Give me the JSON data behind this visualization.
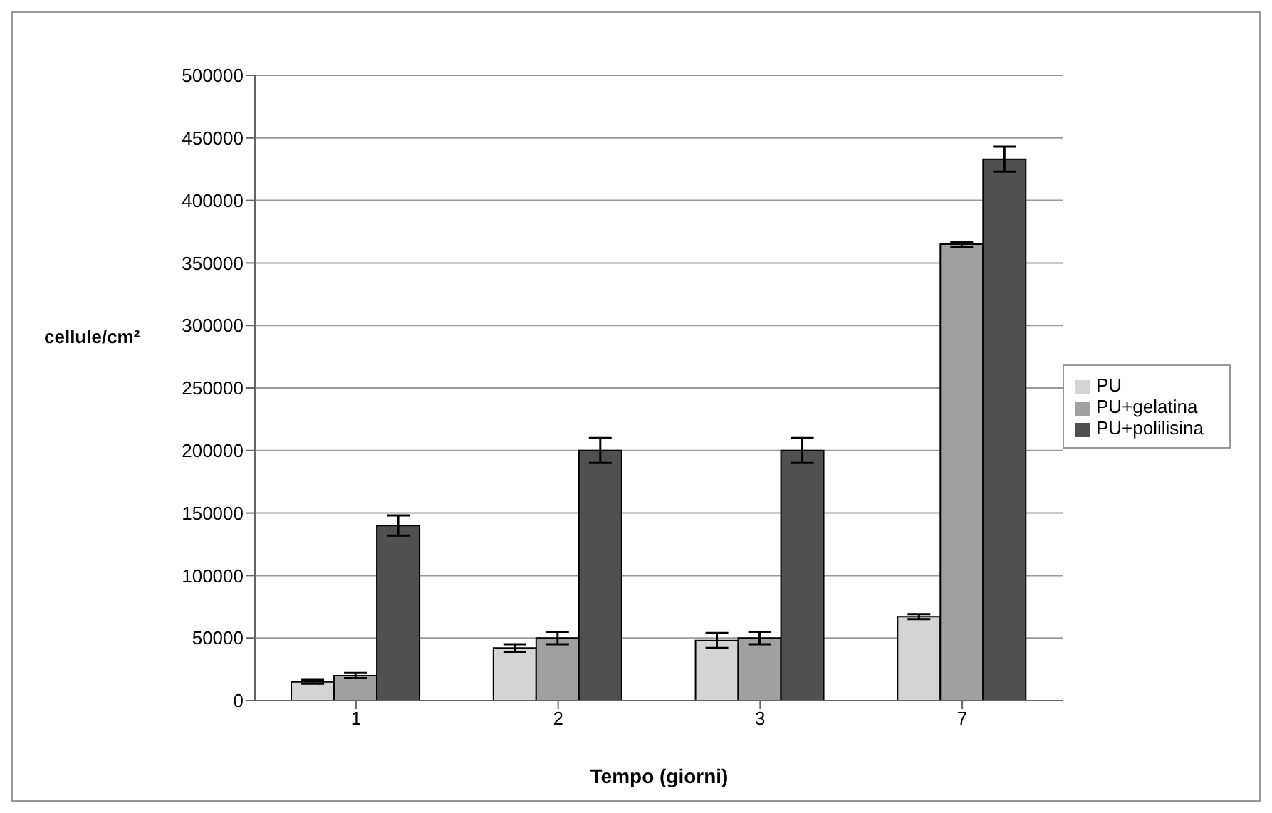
{
  "chart_data": {
    "type": "bar",
    "xlabel": "Tempo (giorni)",
    "ylabel": "cellule/cm²",
    "categories": [
      "1",
      "2",
      "3",
      "7"
    ],
    "series": [
      {
        "name": "PU",
        "color": "#d4d4d4",
        "values": [
          15000,
          42000,
          48000,
          67000
        ],
        "errors": [
          1500,
          3000,
          6000,
          2000
        ]
      },
      {
        "name": "PU+gelatina",
        "color": "#a0a0a0",
        "values": [
          20000,
          50000,
          50000,
          365000
        ],
        "errors": [
          2000,
          5000,
          5000,
          2000
        ]
      },
      {
        "name": "PU+polilisina",
        "color": "#505050",
        "values": [
          140000,
          200000,
          200000,
          433000
        ],
        "errors": [
          8000,
          10000,
          10000,
          10000
        ]
      }
    ],
    "ylim": [
      0,
      500000
    ],
    "yticks": [
      0,
      50000,
      100000,
      150000,
      200000,
      250000,
      300000,
      350000,
      400000,
      450000,
      500000
    ],
    "grid": "y",
    "legend": "right"
  }
}
